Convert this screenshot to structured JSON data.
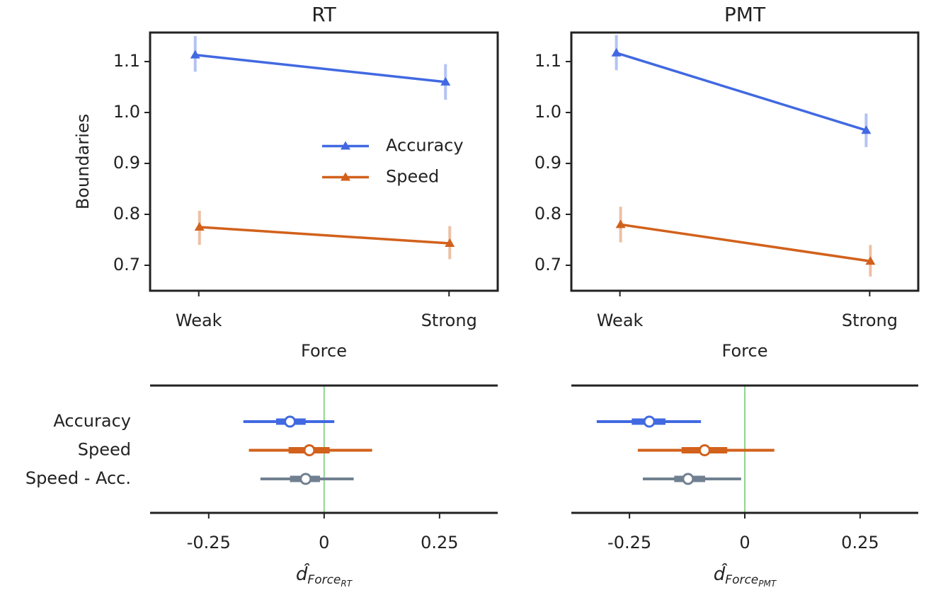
{
  "chart_data": [
    {
      "type": "line",
      "title": "RT",
      "xlabel": "Force",
      "ylabel": "Boundaries",
      "categories": [
        "Weak",
        "Strong"
      ],
      "series": [
        {
          "name": "Accuracy",
          "color": "#4169e1",
          "values": [
            1.113,
            1.06
          ],
          "error_low": [
            1.08,
            1.025
          ],
          "error_high": [
            1.15,
            1.095
          ]
        },
        {
          "name": "Speed",
          "color": "#d2611c",
          "values": [
            0.775,
            0.743
          ],
          "error_low": [
            0.74,
            0.712
          ],
          "error_high": [
            0.807,
            0.777
          ]
        }
      ],
      "ylim": [
        0.65,
        1.157
      ],
      "yticks": [
        0.7,
        0.8,
        0.9,
        {
          "value": 1,
          "label": "1.0"
        },
        1.1
      ],
      "legend": "center right"
    },
    {
      "type": "line",
      "title": "PMT",
      "xlabel": "Force",
      "categories": [
        "Weak",
        "Strong"
      ],
      "series": [
        {
          "color": "#4169e1",
          "values": [
            1.117,
            0.965
          ],
          "error_low": [
            1.083,
            0.932
          ],
          "error_high": [
            1.152,
            0.998
          ]
        },
        {
          "color": "#d2611c",
          "values": [
            0.78,
            0.708
          ],
          "error_low": [
            0.745,
            0.678
          ],
          "error_high": [
            0.815,
            0.74
          ]
        }
      ],
      "ylim": [
        0.65,
        1.157
      ],
      "yticks": [
        0.7,
        0.8,
        0.9,
        {
          "value": 1,
          "label": "1.0"
        },
        1.1
      ]
    },
    {
      "type": "forest",
      "xlabel": {
        "base": "d̂",
        "sub": "Force",
        "subsub": "RT"
      },
      "categories": [
        "Accuracy",
        "Speed",
        "Speed - Acc."
      ],
      "colors": [
        "#4169e1",
        "#d2611c",
        "#708090"
      ],
      "values": [
        -0.074,
        -0.032,
        -0.04
      ],
      "thin_low": [
        -0.175,
        -0.163,
        -0.138
      ],
      "thin_high": [
        0.022,
        0.104,
        0.064
      ],
      "thick_low": [
        -0.104,
        -0.077,
        -0.074
      ],
      "thick_high": [
        -0.04,
        0.012,
        -0.009
      ],
      "refline": 0,
      "refline_color": "#8fd68f",
      "xlim": [
        -0.377,
        0.376
      ],
      "xticks": [
        -0.25,
        0,
        0.25
      ]
    },
    {
      "type": "forest",
      "xlabel": {
        "base": "d̂",
        "sub": "Force",
        "subsub": "PMT"
      },
      "colors": [
        "#4169e1",
        "#d2611c",
        "#708090"
      ],
      "values": [
        -0.207,
        -0.087,
        -0.123
      ],
      "thin_low": [
        -0.321,
        -0.232,
        -0.221
      ],
      "thin_high": [
        -0.095,
        0.064,
        -0.008
      ],
      "thick_low": [
        -0.245,
        -0.137,
        -0.153
      ],
      "thick_high": [
        -0.172,
        -0.038,
        -0.086
      ],
      "refline": 0,
      "refline_color": "#8fd68f",
      "xlim": [
        -0.376,
        0.376
      ],
      "xticks": [
        -0.25,
        0,
        0.25
      ]
    }
  ]
}
